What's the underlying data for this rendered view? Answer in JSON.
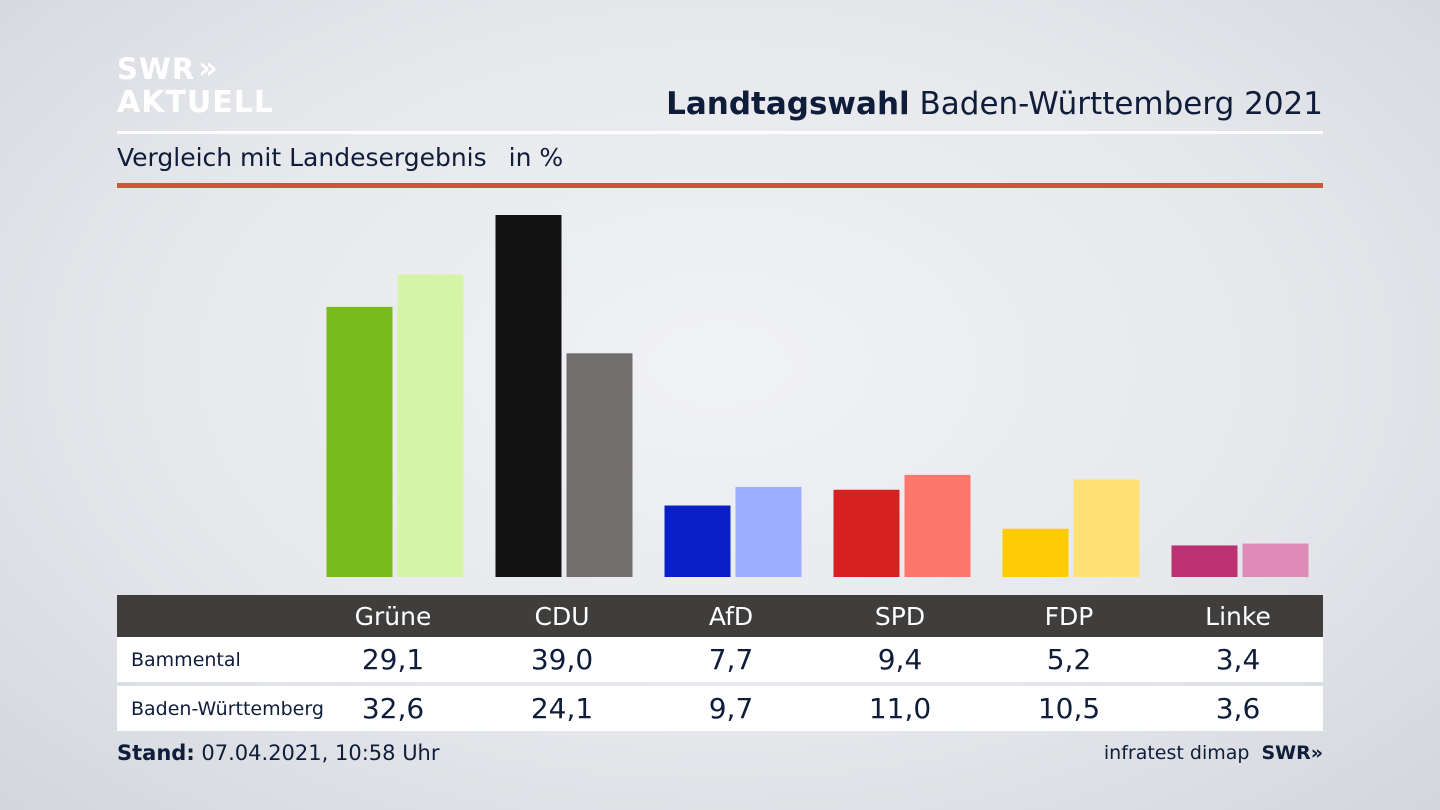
{
  "logo": {
    "line1": "SWR",
    "line1_chevrons": "»",
    "line2": "AKTUELL"
  },
  "header": {
    "title_bold": "Landtagswahl",
    "title_rest": "Baden-Württemberg 2021"
  },
  "subheader": {
    "label": "Vergleich mit Landesergebnis",
    "unit": "in %"
  },
  "colors": {
    "accent_red": "#d2533b",
    "Grüne": [
      "#78bc1b",
      "#d4f4a8"
    ],
    "CDU": [
      "#121212",
      "#706f6d"
    ],
    "AfD": [
      "#0a1fc6",
      "#9eaeff"
    ],
    "SPD": [
      "#d72020",
      "#ff766c"
    ],
    "FDP": [
      "#ffcb06",
      "#ffe175"
    ],
    "Linke": [
      "#bc3172",
      "#de8ab6"
    ]
  },
  "chart_data": {
    "type": "bar",
    "categories": [
      "Grüne",
      "CDU",
      "AfD",
      "SPD",
      "FDP",
      "Linke"
    ],
    "series": [
      {
        "name": "Bammental",
        "values": [
          29.1,
          39.0,
          7.7,
          9.4,
          5.2,
          3.4
        ]
      },
      {
        "name": "Baden-Württemberg",
        "values": [
          32.6,
          24.1,
          9.7,
          11.0,
          10.5,
          3.6
        ]
      }
    ],
    "ylim": [
      0,
      39.0
    ]
  },
  "table": {
    "headers": [
      "Grüne",
      "CDU",
      "AfD",
      "SPD",
      "FDP",
      "Linke"
    ],
    "rows": [
      {
        "label": "Bammental",
        "values": [
          "29,1",
          "39,0",
          "7,7",
          "9,4",
          "5,2",
          "3,4"
        ]
      },
      {
        "label": "Baden-Württemberg",
        "values": [
          "32,6",
          "24,1",
          "9,7",
          "11,0",
          "10,5",
          "3,6"
        ]
      }
    ]
  },
  "footer": {
    "stand_label": "Stand:",
    "stand_value": "07.04.2021, 10:58 Uhr",
    "source": "infratest dimap",
    "source_logo": "SWR",
    "source_logo_chevrons": "»"
  }
}
